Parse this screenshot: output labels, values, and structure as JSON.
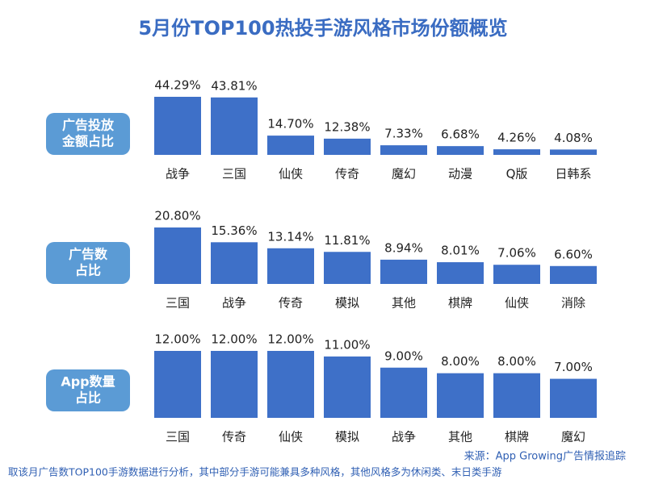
{
  "title": "5月份TOP100热投手游风格市场份额概览",
  "chart_data": [
    {
      "type": "bar",
      "label": [
        "广告投放",
        "金额占比"
      ],
      "color": "#3e70c8",
      "categories": [
        "战争",
        "三国",
        "仙侠",
        "传奇",
        "魔幻",
        "动漫",
        "Q版",
        "日韩系"
      ],
      "values": [
        44.29,
        43.81,
        14.7,
        12.38,
        7.33,
        6.68,
        4.26,
        4.08
      ],
      "value_labels": [
        "44.29%",
        "43.81%",
        "14.70%",
        "12.38%",
        "7.33%",
        "6.68%",
        "4.26%",
        "4.08%"
      ]
    },
    {
      "type": "bar",
      "label": [
        "广告数",
        "占比"
      ],
      "color": "#3e70c8",
      "categories": [
        "三国",
        "战争",
        "传奇",
        "模拟",
        "其他",
        "棋牌",
        "仙侠",
        "消除"
      ],
      "values": [
        20.8,
        15.36,
        13.14,
        11.81,
        8.94,
        8.01,
        7.06,
        6.6
      ],
      "value_labels": [
        "20.80%",
        "15.36%",
        "13.14%",
        "11.81%",
        "8.94%",
        "8.01%",
        "7.06%",
        "6.60%"
      ]
    },
    {
      "type": "bar",
      "label": [
        "App数量",
        "占比"
      ],
      "color": "#3e70c8",
      "categories": [
        "三国",
        "传奇",
        "仙侠",
        "模拟",
        "战争",
        "其他",
        "棋牌",
        "魔幻"
      ],
      "values": [
        12.0,
        12.0,
        12.0,
        11.0,
        9.0,
        8.0,
        8.0,
        7.0
      ],
      "value_labels": [
        "12.00%",
        "12.00%",
        "12.00%",
        "11.00%",
        "9.00%",
        "8.00%",
        "8.00%",
        "7.00%"
      ]
    }
  ],
  "source": "来源：App Growing广告情报追踪",
  "note": "取该月广告数TOP100手游数据进行分析，其中部分手游可能兼具多种风格，其他风格多为休闲类、末日类手游"
}
